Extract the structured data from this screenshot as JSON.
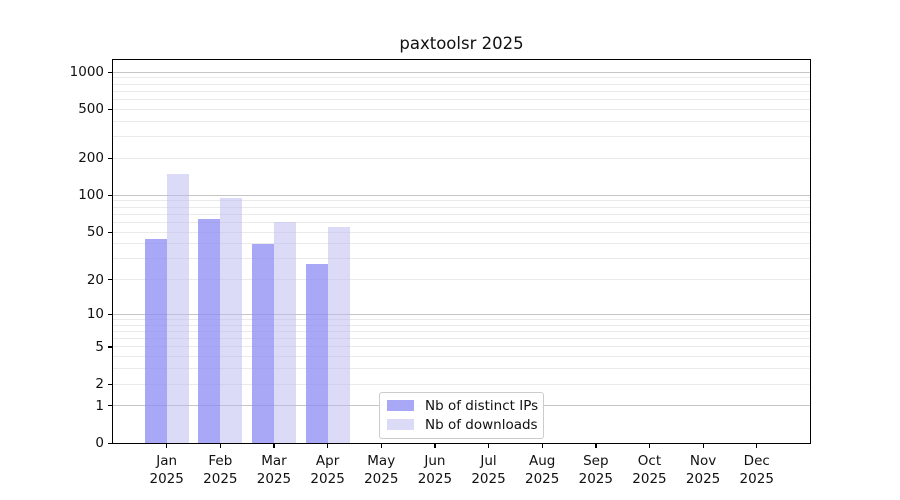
{
  "chart_data": {
    "type": "bar",
    "title": "paxtoolsr 2025",
    "categories": [
      "Jan 2025",
      "Feb 2025",
      "Mar 2025",
      "Apr 2025",
      "May 2025",
      "Jun 2025",
      "Jul 2025",
      "Aug 2025",
      "Sep 2025",
      "Oct 2025",
      "Nov 2025",
      "Dec 2025"
    ],
    "series": [
      {
        "name": "Nb of distinct IPs",
        "color": "#8b8bf3",
        "alpha": 0.75,
        "values": [
          44,
          64,
          40,
          27,
          0,
          0,
          0,
          0,
          0,
          0,
          0,
          0
        ]
      },
      {
        "name": "Nb of downloads",
        "color": "#b7b7f1",
        "alpha": 0.5,
        "values": [
          150,
          95,
          60,
          55,
          0,
          0,
          0,
          0,
          0,
          0,
          0,
          0
        ]
      }
    ],
    "y_ticks": [
      0,
      1,
      2,
      5,
      10,
      20,
      50,
      100,
      200,
      500,
      1000
    ],
    "yscale": "log1p",
    "ylim": [
      0,
      1250
    ],
    "xlabel": "",
    "ylabel": "",
    "grid": "on",
    "legend_position": "lower center"
  },
  "colors": {
    "background": "#ffffff",
    "axis": "#000000",
    "text": "#1a1a1a",
    "grid_major": "#c6c6c6",
    "grid_minor": "#eaeaea",
    "legend_border": "#cccccc",
    "bar_distinct_ips_blended": "#a8a8f6",
    "bar_downloads_blended": "#dbdbf8"
  }
}
